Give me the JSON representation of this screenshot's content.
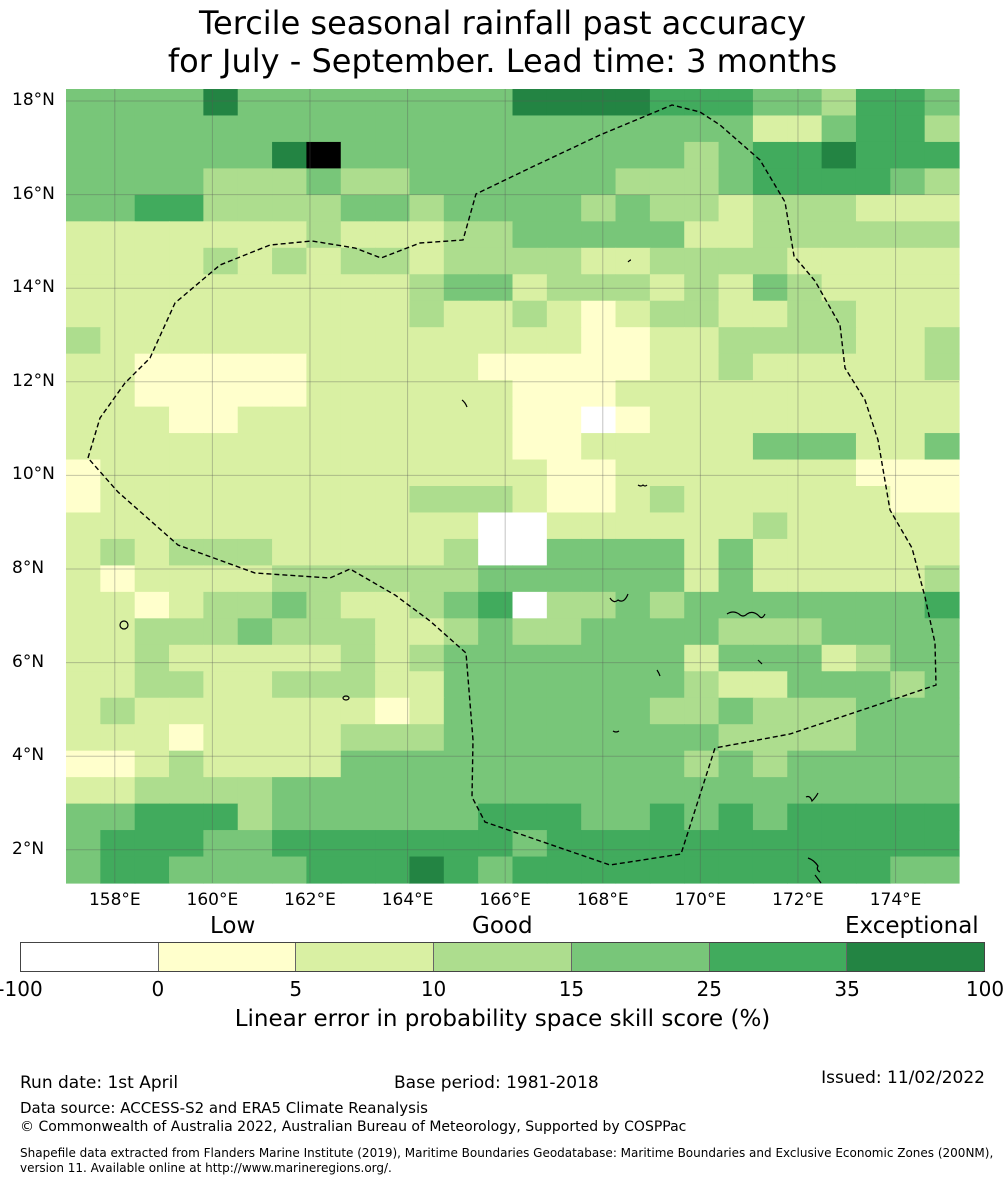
{
  "title_line1": "Tercile seasonal rainfall past accuracy",
  "title_line2": "for July - September. Lead time: 3 months",
  "lat_labels": [
    "18°N",
    "16°N",
    "14°N",
    "12°N",
    "10°N",
    "8°N",
    "6°N",
    "4°N",
    "2°N"
  ],
  "lon_labels": [
    "158°E",
    "160°E",
    "162°E",
    "164°E",
    "166°E",
    "168°E",
    "170°E",
    "172°E",
    "174°E"
  ],
  "colorbar": {
    "category_labels": [
      "Low",
      "Good",
      "Exceptional"
    ],
    "ticks": [
      "-100",
      "0",
      "5",
      "10",
      "15",
      "25",
      "35",
      "100"
    ],
    "colors": [
      "#ffffff",
      "#ffffcc",
      "#d9f0a3",
      "#addd8e",
      "#78c679",
      "#41ab5d",
      "#238443"
    ],
    "label": "Linear error in probability space skill score (%)"
  },
  "grid": {
    "rows": [
      "33335333333335555444332443",
      "33333333333333333333113442",
      "33333356333333333323445444",
      "33332223223333332223444432",
      "33442222332333323221222111",
      "11111112111223333311222222",
      "11112121221222211222211111",
      "11111111112331222121321111",
      "11111111112112101221122111",
      "21111111111111100112222112",
      "11000001111100000112111112",
      "11000001111110001111111111",
      "11100111111110000111111111",
      "11111111111110011111333113",
      "01111111111111001111111000",
      "01111111112221001211111100",
      "11111111111111111111211111",
      "12122211111222333313111111",
      "10111122222233333313111112",
      "11012232112342223233333334",
      "11222322211232233332223333",
      "11211111212333333313331233",
      "11221122211333333321133323",
      "12111111101333333223222333",
      "11101111222333333332222333",
      "00121111333333333323233333",
      "11222233333333333333333333",
      "33444233333344433434344444",
      "34443344444443444444444444",
      "34433334445434444444444433"
    ],
    "missing_cells": [
      [
        12,
        15
      ],
      [
        16,
        12
      ],
      [
        16,
        13
      ],
      [
        17,
        12
      ],
      [
        17,
        13
      ],
      [
        19,
        13
      ]
    ]
  },
  "footer": {
    "run_date": "Run date: 1st April",
    "base_period": "Base period: 1981-2018",
    "issued": "Issued: 11/02/2022",
    "data_source": "Data source: ACCESS-S2 and ERA5 Climate Reanalysis",
    "copyright": "© Commonwealth of Australia 2022, Australian Bureau of Meteorology, Supported by COSPPac",
    "shapefile": "Shapefile data extracted from Flanders Marine Institute (2019), Maritime Boundaries Geodatabase: Maritime Boundaries and Exclusive Economic Zones (200NM), version 11. Available online at http://www.marineregions.org/."
  }
}
